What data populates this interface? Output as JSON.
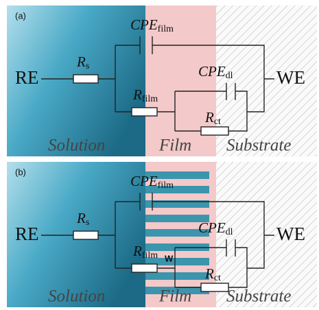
{
  "panels": [
    {
      "label": "(a)",
      "re": "RE",
      "we": "WE",
      "cpe_film": {
        "main": "CPE",
        "sub": "film"
      },
      "rs": {
        "main": "R",
        "sub": "s"
      },
      "r_film": {
        "main": "R",
        "sub": "film"
      },
      "cpe_dl": {
        "main": "CPE",
        "sub": "dl"
      },
      "r_ct": {
        "main": "R",
        "sub": "ct"
      },
      "regions": [
        "Solution",
        "Film",
        "Substrate"
      ]
    },
    {
      "label": "(b)",
      "re": "RE",
      "we": "WE",
      "cpe_film": {
        "main": "CPE",
        "sub": "film"
      },
      "rs": {
        "main": "R",
        "sub": "s"
      },
      "r_film": {
        "main": "R",
        "sub": "film"
      },
      "cpe_dl": {
        "main": "CPE",
        "sub": "dl"
      },
      "r_ct": {
        "main": "R",
        "sub": "ct"
      },
      "warburg": "W",
      "regions": [
        "Solution",
        "Film",
        "Substrate"
      ]
    }
  ]
}
